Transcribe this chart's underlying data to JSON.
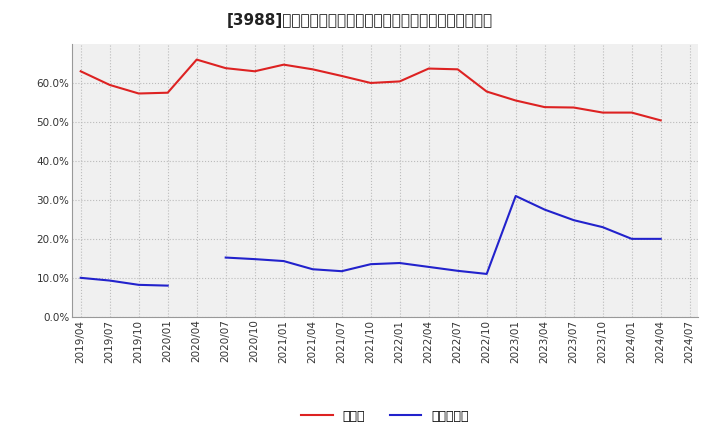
{
  "title": "[3988]　現預金、有利子負債の総資産に対する比率の推移",
  "x_labels": [
    "2019/04",
    "2019/07",
    "2019/10",
    "2020/01",
    "2020/04",
    "2020/07",
    "2020/10",
    "2021/01",
    "2021/04",
    "2021/07",
    "2021/10",
    "2022/01",
    "2022/04",
    "2022/07",
    "2022/10",
    "2023/01",
    "2023/04",
    "2023/07",
    "2023/10",
    "2024/01",
    "2024/04",
    "2024/07"
  ],
  "cash_values": [
    0.63,
    0.595,
    0.573,
    0.575,
    0.66,
    0.638,
    0.63,
    0.647,
    0.635,
    0.618,
    0.6,
    0.604,
    0.637,
    0.635,
    0.578,
    0.555,
    0.538,
    0.537,
    0.524,
    0.524,
    0.504,
    null
  ],
  "debt_values": [
    0.1,
    0.093,
    0.082,
    0.08,
    null,
    0.152,
    0.148,
    0.143,
    0.122,
    0.117,
    0.135,
    0.138,
    0.128,
    0.118,
    0.11,
    0.31,
    0.275,
    0.248,
    0.23,
    0.2,
    0.2,
    null
  ],
  "cash_color": "#dd2222",
  "debt_color": "#2222cc",
  "grid_color": "#bbbbbb",
  "bg_color": "#ffffff",
  "plot_bg_color": "#f0f0f0",
  "ylim": [
    0.0,
    0.7
  ],
  "yticks": [
    0.0,
    0.1,
    0.2,
    0.3,
    0.4,
    0.5,
    0.6
  ],
  "legend_cash": "現預金",
  "legend_debt": "有利子負債",
  "title_fontsize": 11,
  "tick_fontsize": 7.5,
  "legend_fontsize": 9
}
